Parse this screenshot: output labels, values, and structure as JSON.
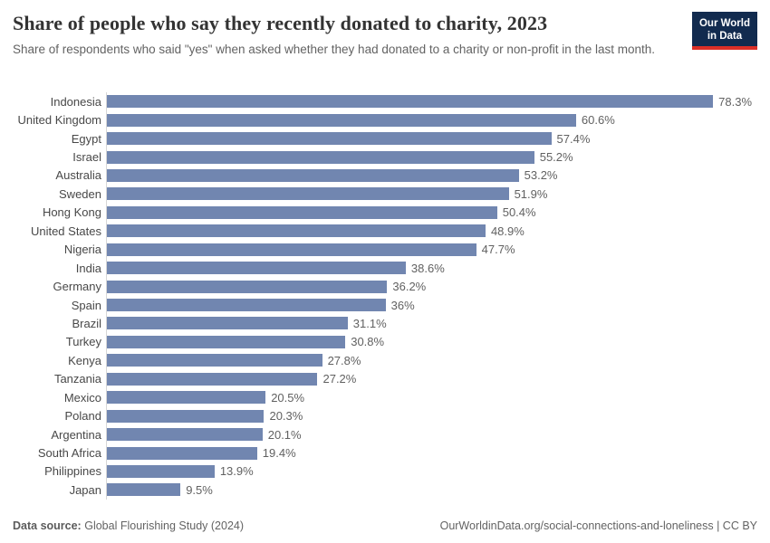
{
  "header": {
    "title": "Share of people who say they recently donated to charity, 2023",
    "subtitle": "Share of respondents who said \"yes\" when asked whether they had donated to a charity or non-profit in the last month.",
    "logo_line1": "Our World",
    "logo_line2": "in Data"
  },
  "chart_data": {
    "type": "bar",
    "orientation": "horizontal",
    "title": "Share of people who say they recently donated to charity, 2023",
    "xlabel": "",
    "ylabel": "",
    "xlim": [
      0,
      78.3
    ],
    "grid": false,
    "legend": false,
    "categories": [
      "Indonesia",
      "United Kingdom",
      "Egypt",
      "Israel",
      "Australia",
      "Sweden",
      "Hong Kong",
      "United States",
      "Nigeria",
      "India",
      "Germany",
      "Spain",
      "Brazil",
      "Turkey",
      "Kenya",
      "Tanzania",
      "Mexico",
      "Poland",
      "Argentina",
      "South Africa",
      "Philippines",
      "Japan"
    ],
    "values": [
      78.3,
      60.6,
      57.4,
      55.2,
      53.2,
      51.9,
      50.4,
      48.9,
      47.7,
      38.6,
      36.2,
      36,
      31.1,
      30.8,
      27.8,
      27.2,
      20.5,
      20.3,
      20.1,
      19.4,
      13.9,
      9.5
    ],
    "value_labels": [
      "78.3%",
      "60.6%",
      "57.4%",
      "55.2%",
      "53.2%",
      "51.9%",
      "50.4%",
      "48.9%",
      "47.7%",
      "38.6%",
      "36.2%",
      "36%",
      "31.1%",
      "30.8%",
      "27.8%",
      "27.2%",
      "20.5%",
      "20.3%",
      "20.1%",
      "19.4%",
      "13.9%",
      "9.5%"
    ],
    "bar_color": "#7186b0",
    "axis_line_color": "#d7d7d7"
  },
  "footer": {
    "datasource_label": "Data source:",
    "datasource_value": "Global Flourishing Study (2024)",
    "link": "OurWorldinData.org/social-connections-and-loneliness | CC BY"
  },
  "colors": {
    "bar": "#7186b0",
    "logo_background": "#122b4f",
    "logo_accent": "#dc2f27",
    "title_text": "#333333",
    "muted_text": "#636363"
  }
}
